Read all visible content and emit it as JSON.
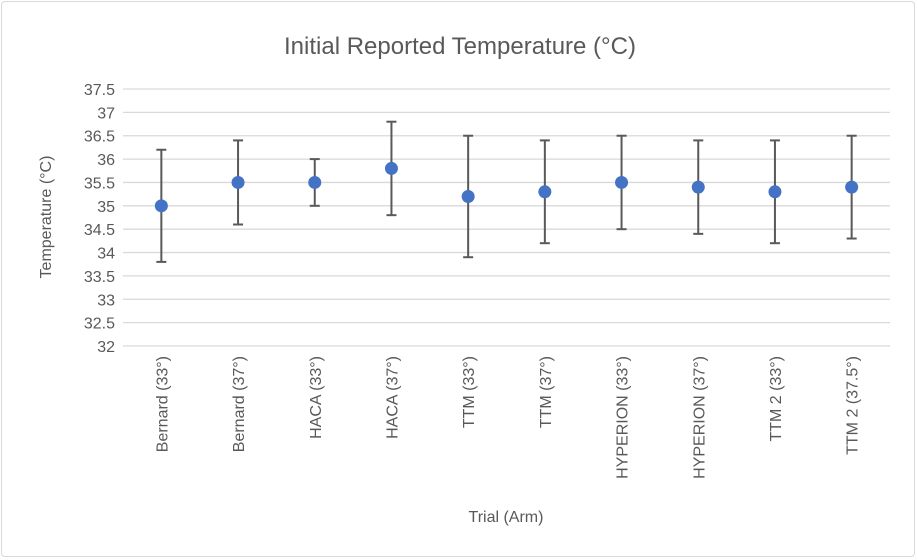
{
  "chart_data": {
    "type": "scatter",
    "title": "Initial Reported Temperature (°C)",
    "xlabel": "Trial (Arm)",
    "ylabel": "Temperature (°C)",
    "ylim": [
      32,
      37.5
    ],
    "yticks": [
      "32",
      "32.5",
      "33",
      "33.5",
      "34",
      "34.5",
      "35",
      "35.5",
      "36",
      "36.5",
      "37",
      "37.5"
    ],
    "grid": true,
    "categories": [
      "Bernard (33°)",
      "Bernard (37°)",
      "HACA (33°)",
      "HACA (37°)",
      "TTM (33°)",
      "TTM (37°)",
      "HYPERION (33°)",
      "HYPERION (37°)",
      "TTM 2 (33°)",
      "TTM 2 (37.5°)"
    ],
    "series": [
      {
        "values": [
          35.0,
          35.5,
          35.5,
          35.8,
          35.2,
          35.3,
          35.5,
          35.4,
          35.3,
          35.4
        ],
        "error_upper": [
          36.2,
          36.4,
          36.0,
          36.8,
          36.5,
          36.4,
          36.5,
          36.4,
          36.4,
          36.5
        ],
        "error_lower": [
          33.8,
          34.6,
          35.0,
          34.8,
          33.9,
          34.2,
          34.5,
          34.4,
          34.2,
          34.3
        ],
        "color": "#4472c4"
      }
    ],
    "errorbar_color": "#595959",
    "grid_color": "#d9d9d9"
  }
}
